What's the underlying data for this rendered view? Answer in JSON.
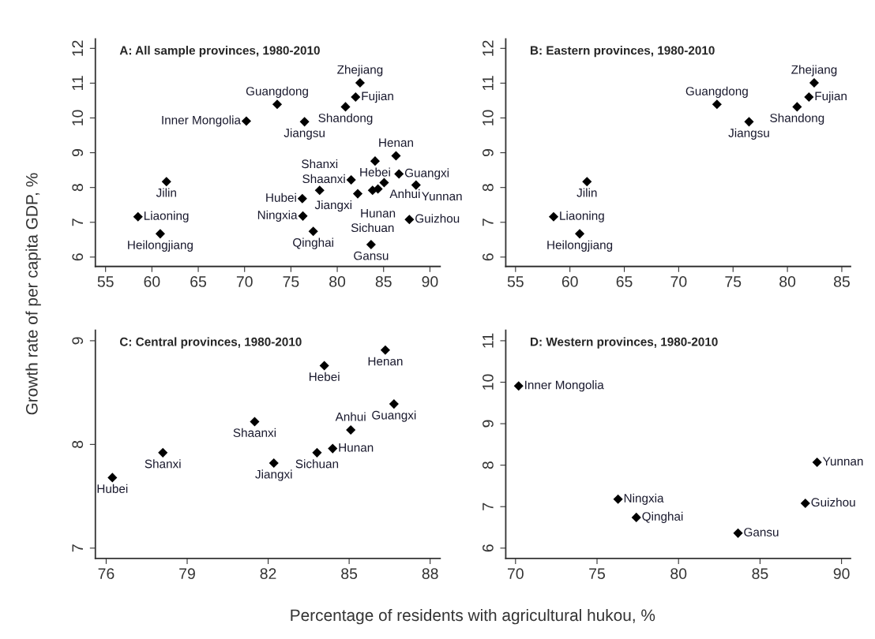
{
  "chart_data": [
    {
      "type": "scatter",
      "title": "A: All sample provinces, 1980-2010",
      "xlabel": "Percentage of residents with agricultural hukou, %",
      "ylabel": "Growth rate of per capita GDP, %",
      "marker": "diamond",
      "grid": false,
      "legend": false,
      "xlim": [
        53.9,
        91.1
      ],
      "ylim": [
        5.73,
        12.27
      ],
      "xticks": [
        55,
        60,
        65,
        70,
        75,
        80,
        85,
        90
      ],
      "yticks": [
        6,
        7,
        8,
        9,
        10,
        11,
        12
      ],
      "series": [
        {
          "color": "#000000",
          "x": [
            82.46,
            81.98,
            80.89,
            73.52,
            76.47,
            61.57,
            58.5,
            60.9,
            86.34,
            84.08,
            86.66,
            81.5,
            85.06,
            84.39,
            83.81,
            78.1,
            82.21,
            76.23,
            70.19,
            88.5,
            76.29,
            87.78,
            77.41,
            83.65
          ],
          "values": [
            11.01,
            10.6,
            10.32,
            10.39,
            9.89,
            8.17,
            7.16,
            6.67,
            8.91,
            8.76,
            8.39,
            8.22,
            8.14,
            7.96,
            7.92,
            7.92,
            7.82,
            7.68,
            9.91,
            8.07,
            7.18,
            7.08,
            6.74,
            6.36
          ]
        }
      ],
      "annotations": [
        {
          "text": "Zhejiang",
          "x": 82.46,
          "y": 11.01
        },
        {
          "text": "Fujian",
          "x": 81.98,
          "y": 10.6
        },
        {
          "text": "Shandong",
          "x": 80.89,
          "y": 10.32
        },
        {
          "text": "Guangdong",
          "x": 73.52,
          "y": 10.39
        },
        {
          "text": "Jiangsu",
          "x": 76.47,
          "y": 9.89
        },
        {
          "text": "Jilin",
          "x": 61.57,
          "y": 8.17
        },
        {
          "text": "Liaoning",
          "x": 58.5,
          "y": 7.16
        },
        {
          "text": "Heilongjiang",
          "x": 60.9,
          "y": 6.67
        },
        {
          "text": "Henan",
          "x": 86.34,
          "y": 8.91
        },
        {
          "text": "Hebei",
          "x": 84.08,
          "y": 8.76
        },
        {
          "text": "Guangxi",
          "x": 86.66,
          "y": 8.39
        },
        {
          "text": "Shaanxi",
          "x": 81.5,
          "y": 8.22
        },
        {
          "text": "Anhui",
          "x": 85.06,
          "y": 8.14
        },
        {
          "text": "Hunan",
          "x": 84.39,
          "y": 7.96
        },
        {
          "text": "Sichuan",
          "x": 83.81,
          "y": 7.92
        },
        {
          "text": "Shanxi",
          "x": 78.1,
          "y": 7.92
        },
        {
          "text": "Jiangxi",
          "x": 82.21,
          "y": 7.82
        },
        {
          "text": "Hubei",
          "x": 76.23,
          "y": 7.68
        },
        {
          "text": "Inner Mongolia",
          "x": 70.19,
          "y": 9.91
        },
        {
          "text": "Yunnan",
          "x": 88.5,
          "y": 8.07
        },
        {
          "text": "Ningxia",
          "x": 76.29,
          "y": 7.18
        },
        {
          "text": "Guizhou",
          "x": 87.78,
          "y": 7.08
        },
        {
          "text": "Qinghai",
          "x": 77.41,
          "y": 6.74
        },
        {
          "text": "Gansu",
          "x": 83.65,
          "y": 6.36
        }
      ]
    },
    {
      "type": "scatter",
      "title": "B: Eastern provinces, 1980-2010",
      "marker": "diamond",
      "grid": false,
      "legend": false,
      "xlim": [
        54.1,
        85.8
      ],
      "ylim": [
        5.73,
        12.27
      ],
      "xticks": [
        55,
        60,
        65,
        70,
        75,
        80,
        85
      ],
      "yticks": [
        6,
        7,
        8,
        9,
        10,
        11,
        12
      ],
      "series": [
        {
          "color": "#000000",
          "x": [
            82.46,
            81.98,
            80.89,
            73.52,
            76.47,
            61.57,
            58.5,
            60.9
          ],
          "values": [
            11.01,
            10.6,
            10.32,
            10.39,
            9.89,
            8.17,
            7.16,
            6.67
          ]
        }
      ],
      "annotations": [
        {
          "text": "Zhejiang",
          "x": 82.46,
          "y": 11.01
        },
        {
          "text": "Fujian",
          "x": 81.98,
          "y": 10.6
        },
        {
          "text": "Shandong",
          "x": 80.89,
          "y": 10.32
        },
        {
          "text": "Guangdong",
          "x": 73.52,
          "y": 10.39
        },
        {
          "text": "Jiangsu",
          "x": 76.47,
          "y": 9.89
        },
        {
          "text": "Jilin",
          "x": 61.57,
          "y": 8.17
        },
        {
          "text": "Liaoning",
          "x": 58.5,
          "y": 7.16
        },
        {
          "text": "Heilongjiang",
          "x": 60.9,
          "y": 6.67
        }
      ]
    },
    {
      "type": "scatter",
      "title": "C: Central provinces, 1980-2010",
      "marker": "diamond",
      "grid": false,
      "legend": false,
      "xlim": [
        75.6,
        88.37
      ],
      "ylim": [
        6.9,
        9.1
      ],
      "xticks": [
        76,
        79,
        82,
        85,
        88
      ],
      "yticks": [
        7,
        8,
        9
      ],
      "series": [
        {
          "color": "#000000",
          "x": [
            86.34,
            84.08,
            86.66,
            81.5,
            85.06,
            84.39,
            83.81,
            78.1,
            82.21,
            76.23
          ],
          "values": [
            8.91,
            8.76,
            8.39,
            8.22,
            8.14,
            7.96,
            7.92,
            7.92,
            7.82,
            7.68
          ]
        }
      ],
      "annotations": [
        {
          "text": "Henan",
          "x": 86.34,
          "y": 8.91
        },
        {
          "text": "Hebei",
          "x": 84.08,
          "y": 8.76
        },
        {
          "text": "Guangxi",
          "x": 86.66,
          "y": 8.39
        },
        {
          "text": "Shaanxi",
          "x": 81.5,
          "y": 8.22
        },
        {
          "text": "Anhui",
          "x": 85.06,
          "y": 8.14
        },
        {
          "text": "Hunan",
          "x": 84.39,
          "y": 7.96
        },
        {
          "text": "Sichuan",
          "x": 83.81,
          "y": 7.92
        },
        {
          "text": "Shanxi",
          "x": 78.1,
          "y": 7.92
        },
        {
          "text": "Jiangxi",
          "x": 82.21,
          "y": 7.82
        },
        {
          "text": "Hubei",
          "x": 76.23,
          "y": 7.68
        }
      ]
    },
    {
      "type": "scatter",
      "title": "D: Western provinces, 1980-2010",
      "marker": "diamond",
      "grid": false,
      "legend": false,
      "xlim": [
        69.4,
        90.55
      ],
      "ylim": [
        5.75,
        11.25
      ],
      "xticks": [
        70,
        75,
        80,
        85,
        90
      ],
      "yticks": [
        6,
        7,
        8,
        9,
        10,
        11
      ],
      "series": [
        {
          "color": "#000000",
          "x": [
            70.19,
            88.5,
            76.29,
            87.78,
            77.41,
            83.65
          ],
          "values": [
            9.91,
            8.07,
            7.18,
            7.08,
            6.74,
            6.36
          ]
        }
      ],
      "annotations": [
        {
          "text": "Inner Mongolia",
          "x": 70.19,
          "y": 9.91
        },
        {
          "text": "Yunnan",
          "x": 88.5,
          "y": 8.07
        },
        {
          "text": "Ningxia",
          "x": 76.29,
          "y": 7.18
        },
        {
          "text": "Guizhou",
          "x": 87.78,
          "y": 7.08
        },
        {
          "text": "Qinghai",
          "x": 77.41,
          "y": 6.74
        },
        {
          "text": "Gansu",
          "x": 83.65,
          "y": 6.36
        }
      ]
    }
  ]
}
